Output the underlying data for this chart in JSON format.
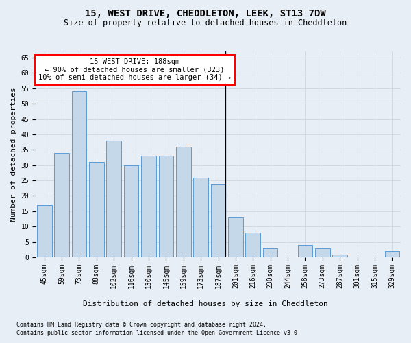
{
  "title": "15, WEST DRIVE, CHEDDLETON, LEEK, ST13 7DW",
  "subtitle": "Size of property relative to detached houses in Cheddleton",
  "xlabel": "Distribution of detached houses by size in Cheddleton",
  "ylabel": "Number of detached properties",
  "bar_labels": [
    "45sqm",
    "59sqm",
    "73sqm",
    "88sqm",
    "102sqm",
    "116sqm",
    "130sqm",
    "145sqm",
    "159sqm",
    "173sqm",
    "187sqm",
    "201sqm",
    "216sqm",
    "230sqm",
    "244sqm",
    "258sqm",
    "273sqm",
    "287sqm",
    "301sqm",
    "315sqm",
    "329sqm"
  ],
  "bar_values": [
    17,
    34,
    54,
    31,
    38,
    30,
    33,
    33,
    36,
    26,
    24,
    13,
    8,
    3,
    0,
    4,
    3,
    1,
    0,
    0,
    2
  ],
  "bar_color": "#c5d8ea",
  "bar_edge_color": "#5b9bd5",
  "annotation_line1": "15 WEST DRIVE: 188sqm",
  "annotation_line2": "← 90% of detached houses are smaller (323)",
  "annotation_line3": "10% of semi-detached houses are larger (34) →",
  "annotation_box_color": "white",
  "annotation_box_edge_color": "red",
  "vline_color": "black",
  "vline_x_index": 10,
  "ylim": [
    0,
    67
  ],
  "yticks": [
    0,
    5,
    10,
    15,
    20,
    25,
    30,
    35,
    40,
    45,
    50,
    55,
    60,
    65
  ],
  "grid_color": "#cdd5e0",
  "background_color": "#e8eef5",
  "footnote1": "Contains HM Land Registry data © Crown copyright and database right 2024.",
  "footnote2": "Contains public sector information licensed under the Open Government Licence v3.0.",
  "title_fontsize": 10,
  "subtitle_fontsize": 8.5,
  "annotation_fontsize": 7.5,
  "ylabel_fontsize": 8,
  "xlabel_fontsize": 8,
  "tick_fontsize": 7,
  "footnote_fontsize": 6
}
